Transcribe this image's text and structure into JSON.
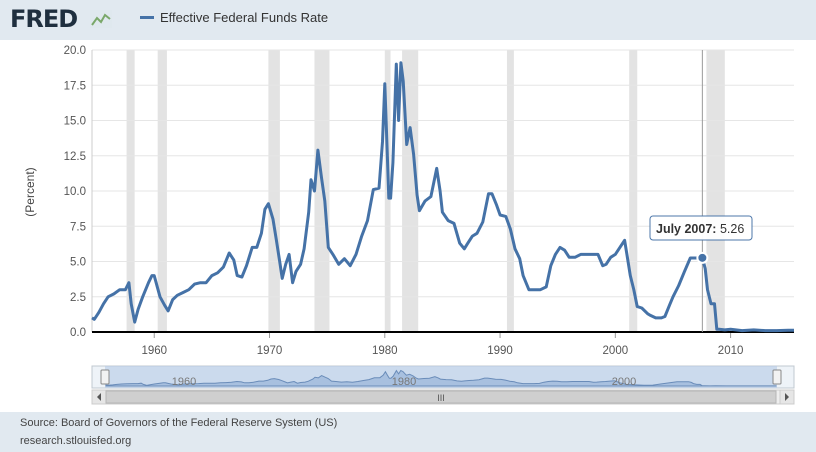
{
  "header": {
    "logo": "FRED",
    "legend_label": "Effective Federal Funds Rate"
  },
  "tooltip": {
    "label": "July 2007",
    "value": "5.26"
  },
  "footer": {
    "source": "Source: Board of Governors of the Federal Reserve System (US)",
    "site": "research.stlouisfed.org"
  },
  "colors": {
    "series": "#4572a7",
    "recession": "#e3e3e3",
    "navigator_fill": "#b8cde6",
    "background": "#e1e9f0"
  },
  "navigator": {
    "labels": [
      "1960",
      "1980",
      "2000"
    ],
    "scroll_grip": "III"
  },
  "chart_data": {
    "type": "line",
    "title": "",
    "xlabel": "",
    "ylabel": "(Percent)",
    "xlim": [
      1954.6,
      2015.5
    ],
    "ylim": [
      0,
      20
    ],
    "yticks": [
      "0.0",
      "2.5",
      "5.0",
      "7.5",
      "10.0",
      "12.5",
      "15.0",
      "17.5",
      "20.0"
    ],
    "xticks": [
      "1960",
      "1970",
      "1980",
      "1990",
      "2000",
      "2010"
    ],
    "grid": true,
    "recessions": [
      [
        1957.6,
        1958.3
      ],
      [
        1960.3,
        1961.1
      ],
      [
        1969.9,
        1970.9
      ],
      [
        1973.9,
        1975.2
      ],
      [
        1980.0,
        1980.5
      ],
      [
        1981.5,
        1982.9
      ],
      [
        1990.6,
        1991.2
      ],
      [
        2001.2,
        2001.9
      ],
      [
        2007.9,
        2009.5
      ]
    ],
    "series": [
      {
        "name": "Effective Federal Funds Rate",
        "x": [
          1954.6,
          1954.8,
          1955.2,
          1955.6,
          1956.0,
          1956.5,
          1957.0,
          1957.5,
          1957.8,
          1958.0,
          1958.3,
          1958.6,
          1959.0,
          1959.5,
          1959.8,
          1960.0,
          1960.5,
          1960.9,
          1961.2,
          1961.6,
          1962.0,
          1962.5,
          1963.0,
          1963.5,
          1964.0,
          1964.5,
          1965.0,
          1965.5,
          1966.0,
          1966.5,
          1966.9,
          1967.2,
          1967.6,
          1968.0,
          1968.5,
          1968.9,
          1969.3,
          1969.6,
          1969.9,
          1970.3,
          1970.6,
          1970.9,
          1971.1,
          1971.4,
          1971.7,
          1972.0,
          1972.3,
          1972.7,
          1973.0,
          1973.4,
          1973.6,
          1973.9,
          1974.2,
          1974.5,
          1974.8,
          1975.1,
          1975.5,
          1976.0,
          1976.5,
          1977.0,
          1977.5,
          1978.0,
          1978.5,
          1979.0,
          1979.5,
          1979.8,
          1980.0,
          1980.2,
          1980.35,
          1980.5,
          1980.7,
          1981.0,
          1981.2,
          1981.4,
          1981.6,
          1981.9,
          1982.2,
          1982.5,
          1982.8,
          1983.0,
          1983.5,
          1984.0,
          1984.5,
          1984.8,
          1985.0,
          1985.5,
          1986.0,
          1986.5,
          1986.9,
          1987.2,
          1987.6,
          1988.0,
          1988.5,
          1989.0,
          1989.3,
          1989.7,
          1990.0,
          1990.5,
          1990.9,
          1991.3,
          1991.7,
          1992.0,
          1992.5,
          1993.0,
          1993.5,
          1994.0,
          1994.4,
          1994.8,
          1995.2,
          1995.6,
          1996.0,
          1996.5,
          1997.0,
          1997.5,
          1998.0,
          1998.5,
          1998.9,
          1999.2,
          1999.6,
          2000.0,
          2000.4,
          2000.8,
          2001.0,
          2001.3,
          2001.6,
          2001.9,
          2002.3,
          2002.8,
          2003.0,
          2003.5,
          2004.0,
          2004.3,
          2004.7,
          2005.0,
          2005.5,
          2006.0,
          2006.5,
          2007.0,
          2007.55,
          2007.8,
          2008.0,
          2008.3,
          2008.6,
          2008.8,
          2009.0,
          2009.5,
          2010.0,
          2011.0,
          2012.0,
          2013.0,
          2014.0,
          2015.0,
          2015.5
        ],
        "y": [
          1.0,
          0.9,
          1.4,
          2.0,
          2.5,
          2.7,
          3.0,
          3.0,
          3.5,
          2.0,
          0.7,
          1.6,
          2.5,
          3.5,
          4.0,
          4.0,
          2.5,
          1.9,
          1.5,
          2.3,
          2.6,
          2.8,
          3.0,
          3.4,
          3.5,
          3.5,
          4.0,
          4.2,
          4.6,
          5.6,
          5.1,
          4.0,
          3.9,
          4.7,
          6.0,
          6.0,
          7.0,
          8.7,
          9.1,
          8.0,
          6.5,
          4.9,
          3.8,
          4.8,
          5.5,
          3.5,
          4.3,
          4.8,
          5.9,
          8.5,
          10.8,
          10.0,
          12.9,
          11.0,
          9.3,
          6.0,
          5.5,
          4.8,
          5.2,
          4.7,
          5.5,
          6.8,
          7.9,
          10.1,
          10.2,
          13.5,
          17.6,
          13.0,
          9.5,
          9.5,
          12.0,
          19.0,
          15.0,
          19.1,
          17.8,
          13.3,
          14.5,
          12.6,
          9.7,
          8.6,
          9.3,
          9.6,
          11.6,
          10.0,
          8.5,
          7.9,
          7.7,
          6.3,
          5.9,
          6.3,
          6.8,
          7.0,
          7.8,
          9.8,
          9.8,
          9.0,
          8.3,
          8.2,
          7.3,
          5.9,
          5.2,
          4.0,
          3.0,
          3.0,
          3.0,
          3.2,
          4.7,
          5.5,
          6.0,
          5.8,
          5.3,
          5.3,
          5.5,
          5.5,
          5.5,
          5.5,
          4.7,
          4.8,
          5.3,
          5.5,
          6.0,
          6.5,
          5.5,
          4.0,
          3.0,
          1.8,
          1.7,
          1.3,
          1.2,
          1.0,
          1.0,
          1.1,
          1.9,
          2.5,
          3.3,
          4.3,
          5.25,
          5.25,
          5.26,
          4.5,
          3.0,
          2.0,
          2.0,
          0.2,
          0.2,
          0.15,
          0.2,
          0.1,
          0.15,
          0.1,
          0.1,
          0.13,
          0.13
        ]
      }
    ],
    "highlight": {
      "x": 2007.55,
      "y": 5.26
    }
  }
}
